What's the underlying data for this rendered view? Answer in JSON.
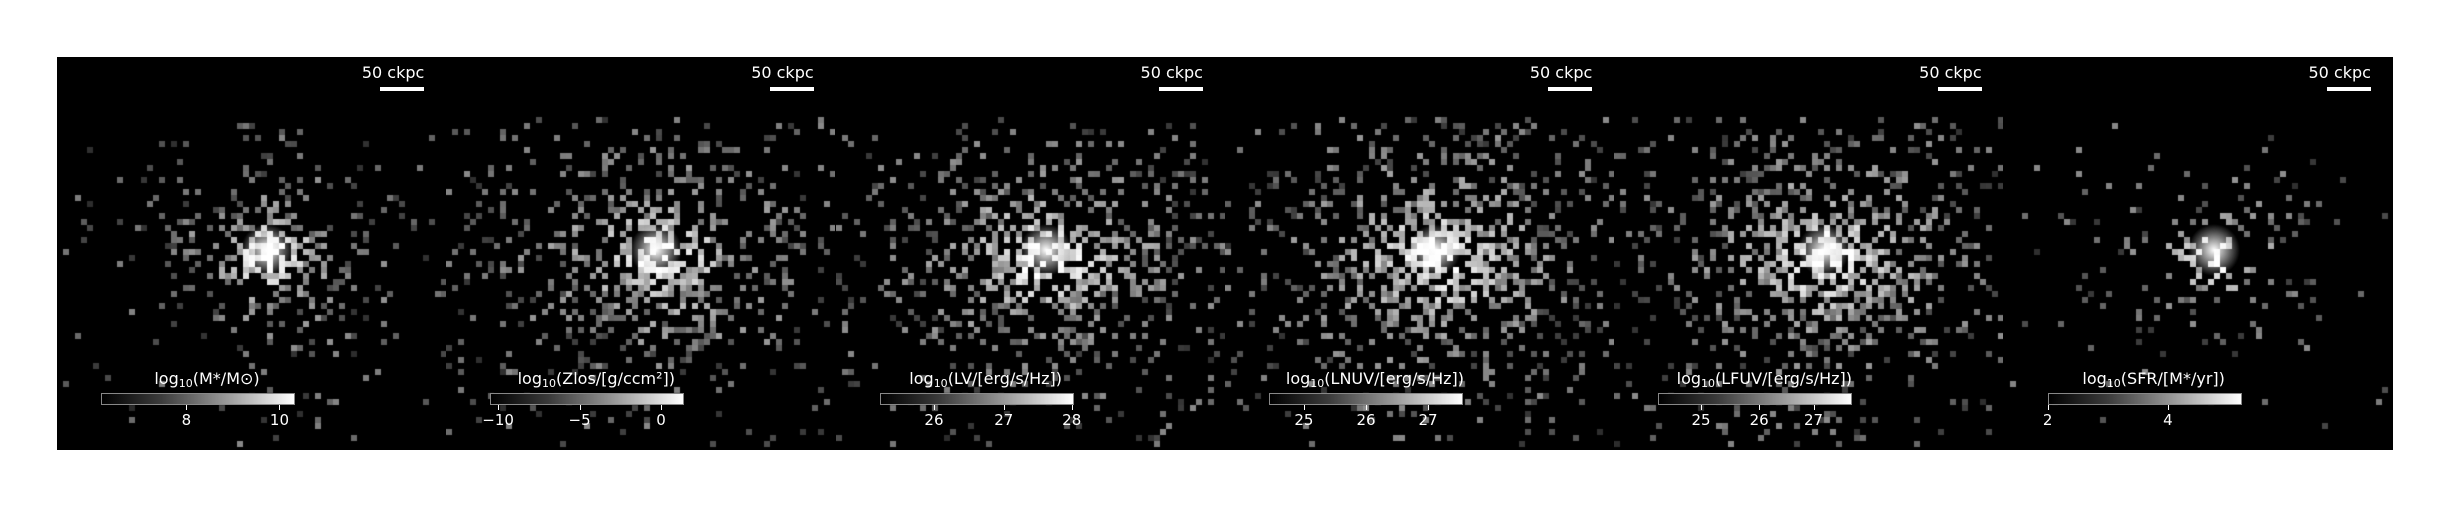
{
  "panels": [
    {
      "scale_label": "50 ckpc",
      "cbar_label_main": "log",
      "cbar_label_sub": "10",
      "cbar_label_rest": "(M*/M⊙)",
      "ticks": [
        {
          "label": "8",
          "pos": 0.44
        },
        {
          "label": "10",
          "pos": 0.92
        }
      ],
      "brightness": 0.85,
      "spread": 0.35,
      "core": 1.0
    },
    {
      "scale_label": "50 ckpc",
      "cbar_label_main": "log",
      "cbar_label_sub": "10",
      "cbar_label_rest": "(Zlos/[g/ccm²])",
      "ticks": [
        {
          "label": "−10",
          "pos": 0.04
        },
        {
          "label": "−5",
          "pos": 0.46
        },
        {
          "label": "0",
          "pos": 0.88
        }
      ],
      "brightness": 0.75,
      "spread": 0.7,
      "core": 0.85
    },
    {
      "scale_label": "50 ckpc",
      "cbar_label_main": "log",
      "cbar_label_sub": "10",
      "cbar_label_rest": "(LV/[erg/s/Hz])",
      "ticks": [
        {
          "label": "26",
          "pos": 0.28
        },
        {
          "label": "27",
          "pos": 0.64
        },
        {
          "label": "28",
          "pos": 0.99
        }
      ],
      "brightness": 0.8,
      "spread": 0.7,
      "core": 0.9
    },
    {
      "scale_label": "50 ckpc",
      "cbar_label_main": "log",
      "cbar_label_sub": "10",
      "cbar_label_rest": "(LNUV/[erg/s/Hz])",
      "ticks": [
        {
          "label": "25",
          "pos": 0.18
        },
        {
          "label": "26",
          "pos": 0.5
        },
        {
          "label": "27",
          "pos": 0.82
        }
      ],
      "brightness": 0.85,
      "spread": 0.75,
      "core": 0.9
    },
    {
      "scale_label": "50 ckpc",
      "cbar_label_main": "log",
      "cbar_label_sub": "10",
      "cbar_label_rest": "(LFUV/[erg/s/Hz])",
      "ticks": [
        {
          "label": "25",
          "pos": 0.22
        },
        {
          "label": "26",
          "pos": 0.52
        },
        {
          "label": "27",
          "pos": 0.8
        }
      ],
      "brightness": 0.85,
      "spread": 0.75,
      "core": 0.9
    },
    {
      "scale_label": "50 ckpc",
      "cbar_label_main": "log",
      "cbar_label_sub": "10",
      "cbar_label_rest": "(SFR/[M*/yr])",
      "ticks": [
        {
          "label": "2",
          "pos": 0.0
        },
        {
          "label": "4",
          "pos": 0.62
        }
      ],
      "brightness": 0.5,
      "spread": 0.3,
      "core": 1.0
    }
  ]
}
